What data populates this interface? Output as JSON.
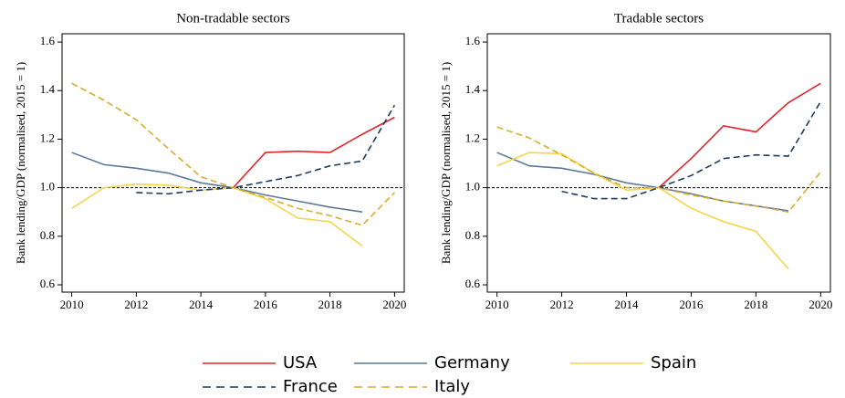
{
  "chart_data": [
    {
      "type": "line",
      "title": "Non-tradable sectors",
      "ylabel": "Bank lending/GDP (normalised, 2015 = 1)",
      "x": [
        2010,
        2011,
        2012,
        2013,
        2014,
        2015,
        2016,
        2017,
        2018,
        2019,
        2020
      ],
      "xlim": [
        2009.7,
        2020.3
      ],
      "xticks": [
        2010,
        2012,
        2014,
        2016,
        2018,
        2020
      ],
      "ylim": [
        0.57,
        1.634
      ],
      "yticks": [
        0.6,
        0.8,
        {
          "value": 1,
          "label": "1.0"
        },
        1.2,
        1.4,
        1.6
      ],
      "hline": 1,
      "series": [
        {
          "name": "USA",
          "color": "#e0262c",
          "linestyle": "solid",
          "values": [
            null,
            null,
            null,
            null,
            null,
            1.0,
            1.145,
            1.15,
            1.145,
            1.22,
            1.29
          ]
        },
        {
          "name": "Germany",
          "color": "#5b7a98",
          "linestyle": "solid",
          "values": [
            1.145,
            1.095,
            1.08,
            1.06,
            1.02,
            1.0,
            0.97,
            0.945,
            0.92,
            0.9,
            null
          ]
        },
        {
          "name": "Spain",
          "color": "#f5d547",
          "linestyle": "solid",
          "values": [
            0.915,
            1.0,
            1.015,
            1.01,
            0.99,
            1.0,
            0.955,
            0.875,
            0.86,
            0.76,
            null
          ]
        },
        {
          "name": "France",
          "color": "#1f3b5e",
          "linestyle": "dashed",
          "values": [
            null,
            null,
            0.98,
            0.975,
            0.99,
            1.0,
            1.025,
            1.05,
            1.09,
            1.11,
            1.34
          ]
        },
        {
          "name": "Italy",
          "color": "#d9ae2c",
          "linestyle": "dashed",
          "values": [
            1.43,
            1.36,
            1.28,
            1.16,
            1.045,
            1.0,
            0.96,
            0.915,
            0.885,
            0.845,
            0.98
          ]
        }
      ]
    },
    {
      "type": "line",
      "title": "Tradable sectors",
      "ylabel": "Bank lending/GDP (normalised, 2015 = 1)",
      "x": [
        2010,
        2011,
        2012,
        2013,
        2014,
        2015,
        2016,
        2017,
        2018,
        2019,
        2020
      ],
      "xlim": [
        2009.7,
        2020.3
      ],
      "xticks": [
        2010,
        2012,
        2014,
        2016,
        2018,
        2020
      ],
      "ylim": [
        0.57,
        1.634
      ],
      "yticks": [
        0.6,
        0.8,
        {
          "value": 1,
          "label": "1.0"
        },
        1.2,
        1.4,
        1.6
      ],
      "hline": 1,
      "series": [
        {
          "name": "USA",
          "color": "#e0262c",
          "linestyle": "solid",
          "values": [
            null,
            null,
            null,
            null,
            null,
            1.0,
            1.12,
            1.255,
            1.23,
            1.35,
            1.43
          ]
        },
        {
          "name": "Germany",
          "color": "#5b7a98",
          "linestyle": "solid",
          "values": [
            1.145,
            1.09,
            1.08,
            1.055,
            1.02,
            1.0,
            0.975,
            0.945,
            0.925,
            0.905,
            null
          ]
        },
        {
          "name": "Spain",
          "color": "#f5d547",
          "linestyle": "solid",
          "values": [
            1.09,
            1.145,
            1.14,
            1.06,
            0.99,
            1.0,
            0.915,
            0.86,
            0.82,
            0.665,
            null
          ]
        },
        {
          "name": "France",
          "color": "#1f3b5e",
          "linestyle": "dashed",
          "values": [
            null,
            null,
            0.985,
            0.955,
            0.955,
            1.0,
            1.05,
            1.12,
            1.135,
            1.13,
            1.355
          ]
        },
        {
          "name": "Italy",
          "color": "#d9ae2c",
          "linestyle": "dashed",
          "values": [
            1.25,
            1.205,
            1.135,
            1.06,
            1.0,
            1.0,
            0.97,
            0.945,
            0.925,
            0.9,
            1.065
          ]
        }
      ]
    }
  ]
}
